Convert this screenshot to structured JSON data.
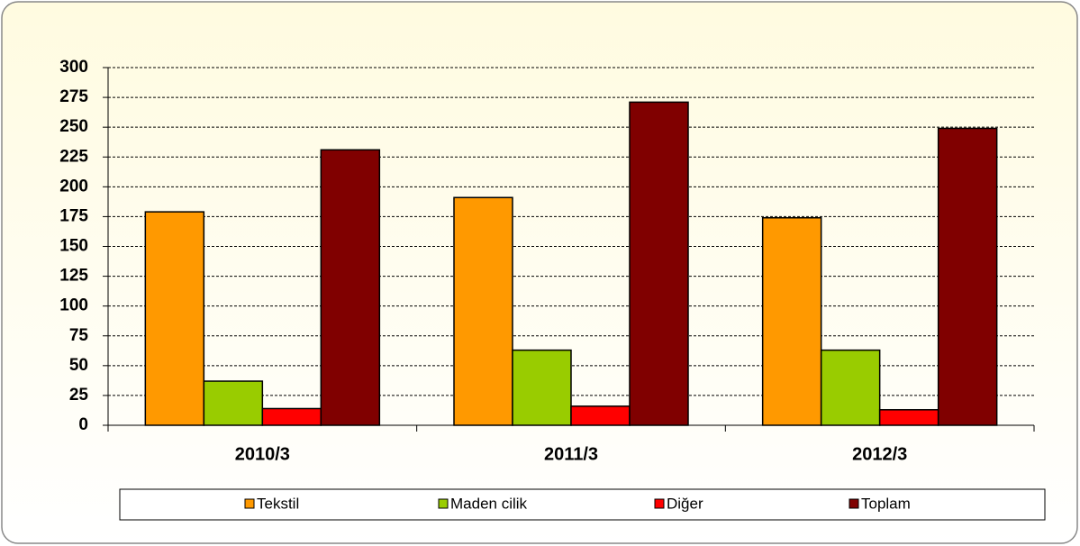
{
  "chart_data": {
    "type": "bar",
    "categories": [
      "2010/3",
      "2011/3",
      "2012/3"
    ],
    "series": [
      {
        "name": "Tekstil",
        "color": "#ff9900",
        "values": [
          179,
          191,
          174
        ]
      },
      {
        "name": "Maden cilik",
        "color": "#99cc00",
        "values": [
          37,
          63,
          63
        ]
      },
      {
        "name": "Diğer",
        "color": "#ff0000",
        "values": [
          14,
          16,
          13
        ]
      },
      {
        "name": "Toplam",
        "color": "#800000",
        "values": [
          231,
          271,
          249
        ]
      }
    ],
    "ylim": [
      0,
      300
    ],
    "yticks": [
      0,
      25,
      50,
      75,
      100,
      125,
      150,
      175,
      200,
      225,
      250,
      275,
      300
    ],
    "grid": true,
    "legend": "bottom"
  }
}
